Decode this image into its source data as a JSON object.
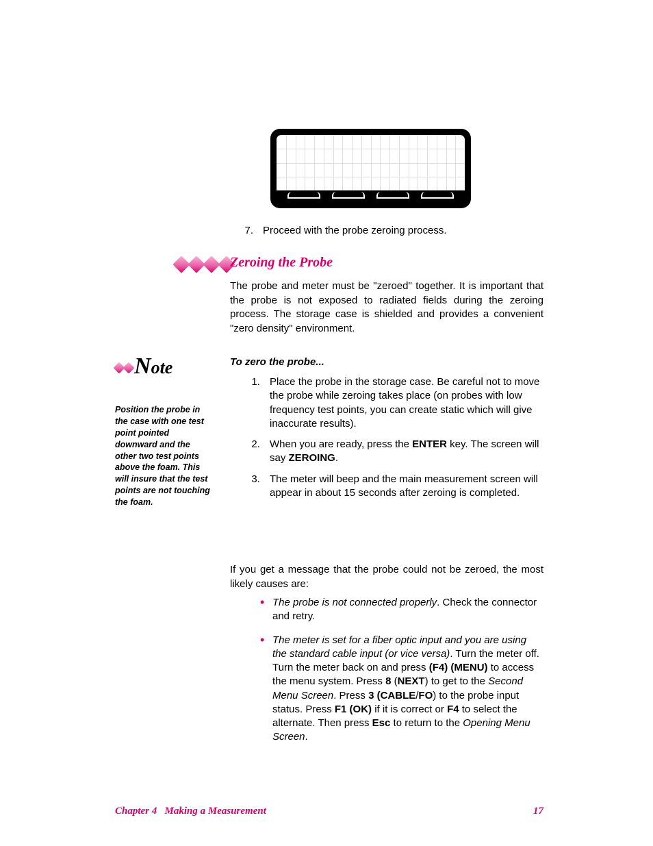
{
  "colors": {
    "accent": "#d6006c",
    "text": "#000000",
    "bg": "#ffffff",
    "grid": "#dddddd"
  },
  "figure": {
    "type": "lcd-screen",
    "grid_cols": 20,
    "grid_rows": 4,
    "softkey_count": 4
  },
  "step7": {
    "num": "7.",
    "text": "Proceed with the probe zeroing process."
  },
  "heading": "Zeroing the Probe",
  "intro": "The probe and meter must be \"zeroed\" together.  It is important that the probe is not exposed to radiated fields during the zeroing process.  The storage case is shielded and provides a convenient \"zero density\" environment.",
  "note_label": "Note",
  "side_note": "Position the probe in the case with one test point pointed downward and the other two test points above the foam. This will insure that the test points are not touching the foam.",
  "subhead": "To zero the probe...",
  "steps": [
    "Place the probe in the storage case.  Be careful not to move the probe while zeroing takes place (on probes with low frequency test points, you can create static which will give inaccurate results).",
    {
      "pre": "When you are ready, press the ",
      "k1": "ENTER",
      "mid": " key. The screen will say ",
      "k2": "ZEROING",
      "post": "."
    },
    "The meter will beep and the main measurement screen will appear in about 15 seconds after zeroing is completed."
  ],
  "fail_intro": "If you get a message that the probe could not be zeroed, the most likely causes are:",
  "bullets": [
    {
      "lead_italic": "The probe is not connected properly",
      "rest": ".  Check the connector and retry."
    },
    {
      "lead_italic": "The meter is set for a fiber optic input and you are using the standard cable input (or vice versa)",
      "seg1": ".  Turn the meter off.  Turn the meter back on and press ",
      "b1": "(F4) (MENU)",
      "seg2": " to access the menu system.  Press ",
      "b2": "8",
      "seg3": " (",
      "b3": "NEXT",
      "seg4": ") to get to the ",
      "i1": "Second Menu Screen",
      "seg5": ".  Press ",
      "b4": "3 (CABLE",
      "seg6": "/",
      "b5": "FO",
      "seg7": ")",
      "seg8": " to the probe input status.  Press ",
      "b6": "F1 (OK)",
      "seg9": " if it is correct or ",
      "b7": "F4",
      "seg10": " to select the alternate.  Then press ",
      "b8": "Esc",
      "seg11": " to return to the ",
      "i2": "Opening Menu Screen",
      "seg12": "."
    }
  ],
  "footer": {
    "chapter": "Chapter 4",
    "title": "Making a Measurement",
    "page": "17"
  }
}
